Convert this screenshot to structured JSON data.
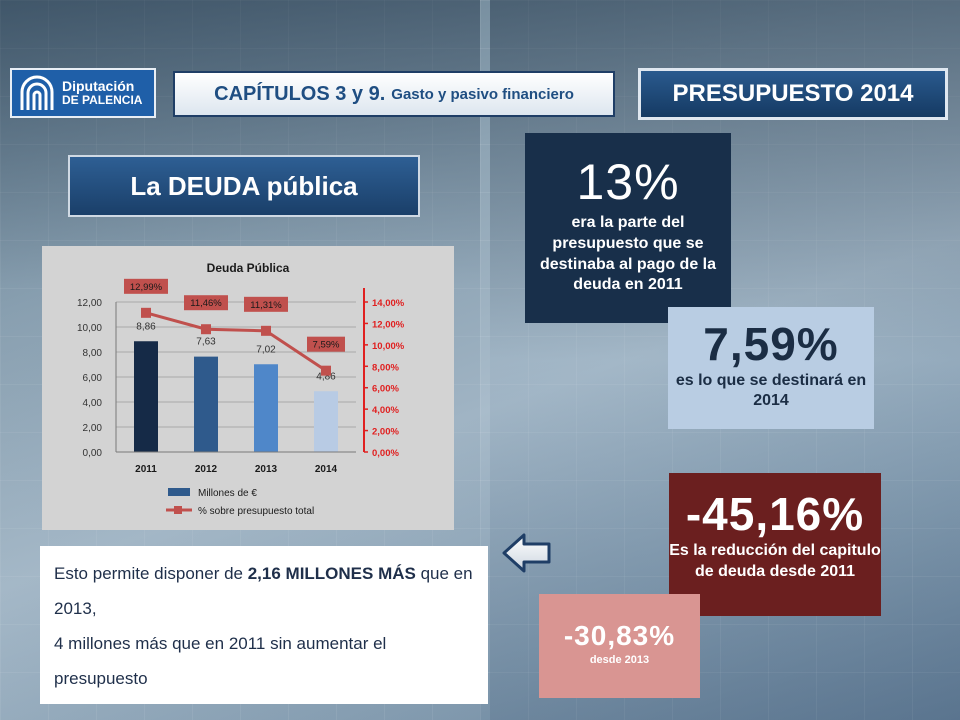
{
  "header": {
    "logo_line1": "Diputación",
    "logo_line2": "DE PALENCIA",
    "chapter_main": "CAPÍTULOS 3 y 9.",
    "chapter_sub": "Gasto y pasivo financiero",
    "presupuesto": "PRESUPUESTO 2014"
  },
  "section_title": "La DEUDA pública",
  "callouts": {
    "c13": {
      "value": "13%",
      "text": "era la parte del presupuesto que se destinaba al pago de la deuda en 2011"
    },
    "c759": {
      "value": "7,59%",
      "text": "es lo que se destinará en 2014"
    },
    "c4516": {
      "value": "-45,16%",
      "text": "Es la reducción del capitulo de deuda desde 2011"
    },
    "c3083": {
      "value": "-30,83%",
      "text": "desde 2013"
    }
  },
  "summary": {
    "part1": "Esto permite disponer de ",
    "bold": "2,16 MILLONES MÁS",
    "part2": " que en 2013,",
    "line2": "4 millones más que en 2011 sin aumentar el presupuesto"
  },
  "colors": {
    "bars": [
      "#152a47",
      "#2f5a8c",
      "#4f87c9",
      "#b8cbe4"
    ],
    "line": "#c0504d",
    "accent_dark": "#182f4a",
    "accent_red": "#6b1f1f"
  },
  "chart_data": {
    "type": "bar",
    "title": "Deuda Pública",
    "categories": [
      "2011",
      "2012",
      "2013",
      "2014"
    ],
    "series": [
      {
        "name": "Millones de €",
        "type": "bar",
        "axis": "left",
        "values": [
          8.86,
          7.63,
          7.02,
          4.86
        ],
        "labels": [
          "8,86",
          "7,63",
          "7,02",
          "4,86"
        ]
      },
      {
        "name": "% sobre presupuesto total",
        "type": "line",
        "axis": "right",
        "values": [
          12.99,
          11.46,
          11.31,
          7.59
        ],
        "labels": [
          "12,99%",
          "11,46%",
          "11,31%",
          "7,59%"
        ]
      }
    ],
    "ylim_left": [
      0,
      12
    ],
    "yticks_left": [
      "0,00",
      "2,00",
      "4,00",
      "6,00",
      "8,00",
      "10,00",
      "12,00"
    ],
    "ylim_right": [
      0,
      14
    ],
    "yticks_right": [
      "0,00%",
      "2,00%",
      "4,00%",
      "6,00%",
      "8,00%",
      "10,00%",
      "12,00%",
      "14,00%"
    ],
    "legend_position": "bottom"
  }
}
